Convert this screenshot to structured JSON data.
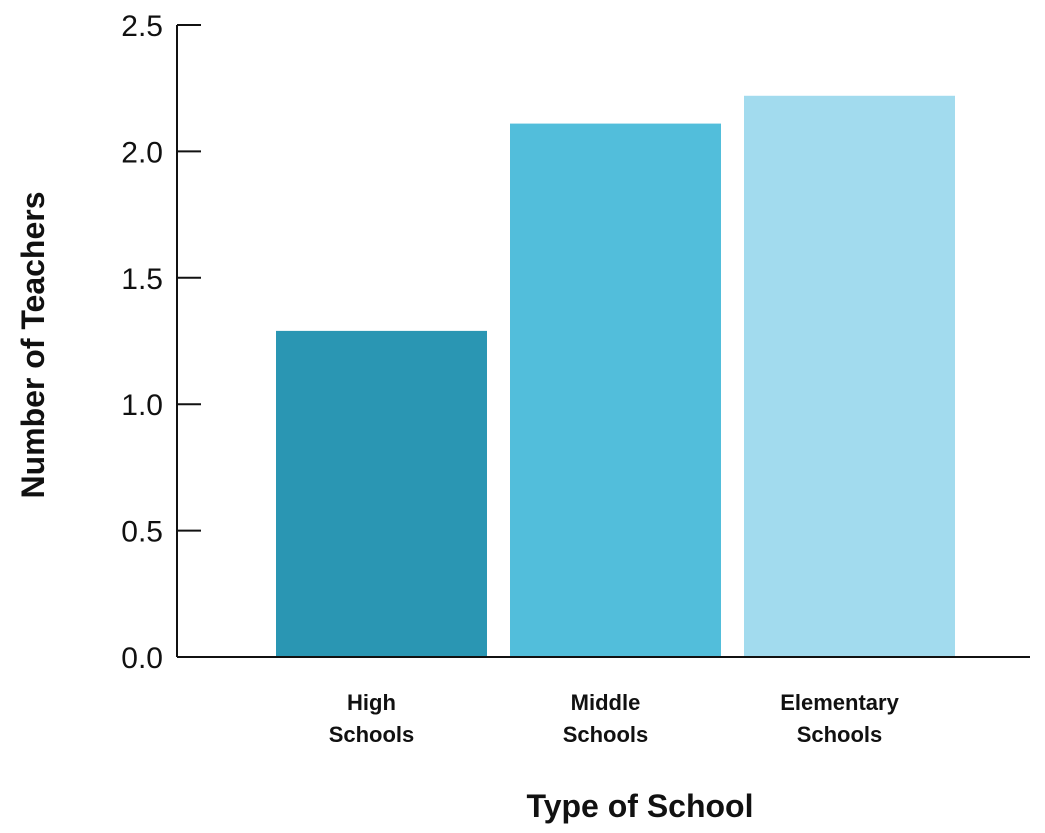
{
  "chart_data": {
    "type": "bar",
    "title": "",
    "xlabel": "Type of School",
    "ylabel": "Number of Teachers",
    "categories": [
      [
        "High",
        "Schools"
      ],
      [
        "Middle",
        "Schools"
      ],
      [
        "Elementary",
        "Schools"
      ]
    ],
    "values": [
      1.29,
      2.11,
      2.22
    ],
    "colors": [
      "#2a96b3",
      "#52bedb",
      "#a2dbee"
    ],
    "ylim": [
      0,
      2.5
    ],
    "yticks": [
      "0.0",
      "0.5",
      "1.0",
      "1.5",
      "2.0",
      "2.5"
    ],
    "grid": false,
    "legend": "none"
  }
}
